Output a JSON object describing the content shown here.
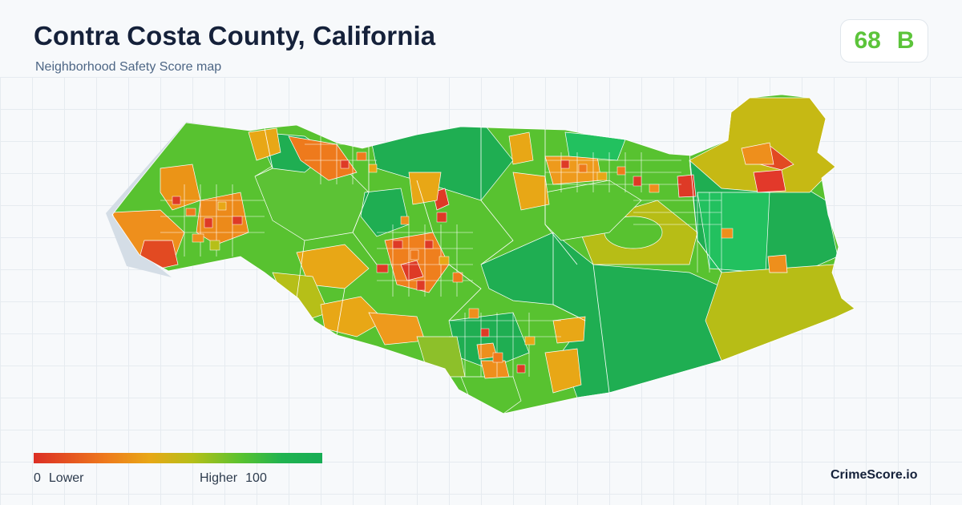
{
  "header": {
    "title": "Contra Costa County, California",
    "subtitle": "Neighborhood Safety Score map"
  },
  "score": {
    "value": "68",
    "grade": "B",
    "color": "#5cc43a"
  },
  "map": {
    "region": "Contra Costa County, California",
    "water_color": "#d4dde6",
    "grid_color": "#e6ebf0",
    "palette": [
      "#e0342a",
      "#ee7a1c",
      "#e8a716",
      "#b6bf18",
      "#58c230",
      "#20b350",
      "#17ad55"
    ]
  },
  "legend": {
    "low_value": "0",
    "low_label": "Lower",
    "high_label": "Higher",
    "high_value": "100",
    "colors": [
      "#dc2f25",
      "#ee7a1c",
      "#e8a716",
      "#b6bf18",
      "#58c230",
      "#20b350",
      "#17ad55"
    ]
  },
  "brand": {
    "name": "CrimeScore.io"
  }
}
